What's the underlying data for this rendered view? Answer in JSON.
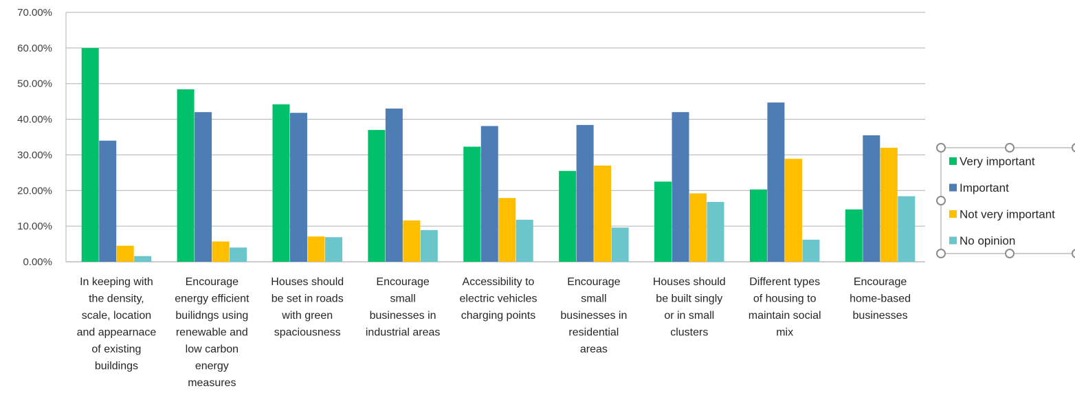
{
  "chart_data": {
    "type": "bar",
    "title": "",
    "xlabel": "",
    "ylabel": "",
    "ylim": [
      0,
      0.7
    ],
    "yticks": [
      "0.00%",
      "10.00%",
      "20.00%",
      "30.00%",
      "40.00%",
      "50.00%",
      "60.00%",
      "70.00%"
    ],
    "grid": true,
    "legend_position": "right",
    "categories": [
      [
        "In keeping with",
        "the density,",
        "scale, location",
        "and appearnace",
        "of existing",
        "buildings"
      ],
      [
        "Encourage",
        "energy efficient",
        "builidngs using",
        "renewable and",
        "low carbon",
        "energy",
        "measures"
      ],
      [
        "Houses should",
        "be set in roads",
        "with green",
        "spaciousness"
      ],
      [
        "Encourage",
        "small",
        "businesses in",
        "industrial areas"
      ],
      [
        "Accessibility to",
        "electric vehicles",
        "charging points"
      ],
      [
        "Encourage",
        "small",
        "businesses in",
        "residential",
        "areas"
      ],
      [
        "Houses should",
        "be built singly",
        "or in small",
        "clusters"
      ],
      [
        "Different types",
        "of housing to",
        "maintain social",
        "mix"
      ],
      [
        "Encourage",
        "home-based",
        "businesses"
      ]
    ],
    "series": [
      {
        "name": "Very important",
        "color": "#00C06A",
        "values": [
          0.6,
          0.484,
          0.442,
          0.37,
          0.323,
          0.255,
          0.225,
          0.203,
          0.147
        ]
      },
      {
        "name": "Important",
        "color": "#4E7DB6",
        "values": [
          0.34,
          0.42,
          0.418,
          0.43,
          0.381,
          0.384,
          0.42,
          0.447,
          0.355
        ]
      },
      {
        "name": "Not very important",
        "color": "#FFBF00",
        "values": [
          0.045,
          0.057,
          0.071,
          0.116,
          0.179,
          0.27,
          0.192,
          0.289,
          0.32
        ]
      },
      {
        "name": "No opinion",
        "color": "#6BC6CC",
        "values": [
          0.016,
          0.04,
          0.069,
          0.089,
          0.118,
          0.096,
          0.168,
          0.062,
          0.184
        ]
      }
    ]
  }
}
